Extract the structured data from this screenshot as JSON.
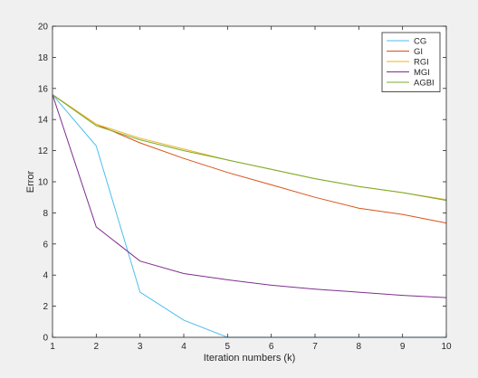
{
  "chart_data": {
    "type": "line",
    "xlabel": "Iteration numbers (k)",
    "ylabel": "Error",
    "xlim": [
      1,
      10
    ],
    "ylim": [
      0,
      20
    ],
    "x_ticks": [
      1,
      2,
      3,
      4,
      5,
      6,
      7,
      8,
      9,
      10
    ],
    "y_ticks": [
      0,
      2,
      4,
      6,
      8,
      10,
      12,
      14,
      16,
      18,
      20
    ],
    "grid": false,
    "legend_position": "top-right",
    "x": [
      1,
      2,
      3,
      4,
      5,
      6,
      7,
      8,
      9,
      10
    ],
    "series": [
      {
        "name": "CG",
        "color": "#4DBEEE",
        "values": [
          15.6,
          12.3,
          2.9,
          1.1,
          0.0,
          0.0,
          0.0,
          0.0,
          0.0,
          0.0
        ]
      },
      {
        "name": "GI",
        "color": "#D95319",
        "values": [
          15.6,
          13.7,
          12.5,
          11.5,
          10.6,
          9.8,
          9.0,
          8.3,
          7.9,
          7.35
        ]
      },
      {
        "name": "RGI",
        "color": "#EDB120",
        "values": [
          15.6,
          13.7,
          12.8,
          12.1,
          11.4,
          10.8,
          10.2,
          9.7,
          9.3,
          8.85
        ]
      },
      {
        "name": "MGI",
        "color": "#7E2F8E",
        "values": [
          15.6,
          7.1,
          4.9,
          4.1,
          3.7,
          3.35,
          3.1,
          2.9,
          2.7,
          2.55
        ]
      },
      {
        "name": "AGBI",
        "color": "#77AC30",
        "values": [
          15.6,
          13.6,
          12.7,
          12.0,
          11.4,
          10.8,
          10.2,
          9.7,
          9.3,
          8.8
        ]
      }
    ]
  }
}
